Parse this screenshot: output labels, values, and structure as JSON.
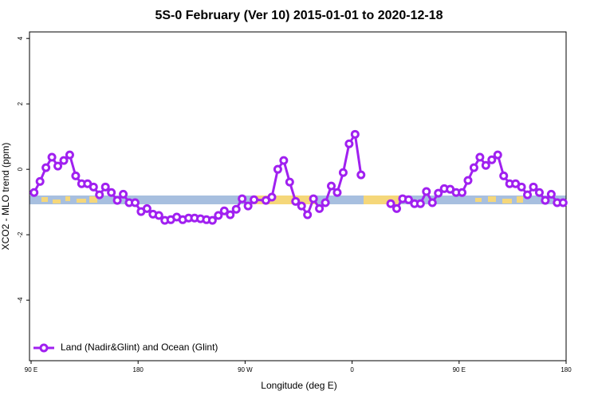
{
  "chart_data": {
    "type": "line",
    "title": "5S-0 February (Ver 10)   2015-01-01 to 2020-12-18",
    "x_label": "Longitude (deg E)",
    "y_label": "XCO2 - MLO trend (ppm)",
    "xlim": [
      90,
      540
    ],
    "ylim": [
      -5.85,
      4.2
    ],
    "xticks": [
      {
        "value": 90,
        "label": "90 E"
      },
      {
        "value": 180,
        "label": "180"
      },
      {
        "value": 270,
        "label": "90 W"
      },
      {
        "value": 360,
        "label": "0"
      },
      {
        "value": 450,
        "label": "90 E"
      },
      {
        "value": 540,
        "label": "180"
      }
    ],
    "yticks": [
      -4,
      -2,
      0,
      2,
      4
    ],
    "legend": "bottom-left",
    "series": [
      {
        "name": "Land (Nadir&Glint) and Ocean (Glint)",
        "color": "#a020f0",
        "x": [
          92.5,
          97.5,
          102.5,
          107.5,
          112.5,
          117.5,
          122.5,
          127.5,
          132.5,
          137.5,
          142.5,
          147.5,
          152.5,
          157.5,
          162.5,
          167.5,
          172.5,
          177.5,
          182.5,
          187.5,
          192.5,
          197.5,
          202.5,
          207.5,
          212.5,
          217.5,
          222.5,
          227.5,
          232.5,
          237.5,
          242.5,
          247.5,
          252.5,
          257.5,
          262.5,
          267.5,
          272.5,
          277.5,
          287.5,
          292.5,
          297.5,
          302.5,
          307.5,
          312.5,
          317.5,
          322.5,
          327.5,
          332.5,
          337.5,
          342.5,
          347.5,
          352.5,
          357.5,
          362.5,
          367.5,
          372.5,
          377.5,
          382.5,
          387.5,
          392.5,
          397.5,
          402.5,
          407.5,
          412.5,
          417.5,
          422.5,
          427.5,
          432.5,
          437.5,
          442.5,
          447.5,
          452.5,
          457.5,
          462.5,
          467.5,
          472.5,
          477.5,
          482.5,
          487.5,
          492.5,
          497.5,
          502.5,
          507.5,
          512.5,
          517.5,
          522.5,
          527.5,
          532.5,
          537.5
        ],
        "values": [
          -0.71,
          -0.37,
          0.05,
          0.37,
          0.1,
          0.27,
          0.44,
          -0.2,
          -0.44,
          -0.44,
          -0.54,
          -0.78,
          -0.54,
          -0.71,
          -0.95,
          -0.76,
          -1.02,
          -1.02,
          -1.29,
          -1.2,
          -1.37,
          -1.41,
          -1.56,
          -1.54,
          -1.46,
          -1.54,
          -1.49,
          -1.49,
          -1.51,
          -1.54,
          -1.56,
          -1.41,
          -1.27,
          -1.39,
          -1.22,
          -0.9,
          -1.12,
          -0.93,
          -0.95,
          -0.85,
          0,
          0.27,
          -0.39,
          -0.98,
          -1.12,
          -1.39,
          -0.9,
          -1.2,
          -1.02,
          -0.51,
          -0.71,
          -0.1,
          0.78,
          1.07,
          -0.17,
          null,
          null,
          null,
          null,
          -1.05,
          -1.2,
          -0.9,
          -0.93,
          -1.05,
          -1.05,
          -0.68,
          -1.02,
          -0.73,
          -0.59,
          -0.61,
          -0.71,
          -0.71,
          -0.34,
          0.05,
          0.37,
          0.12,
          0.29,
          0.44,
          -0.2,
          -0.44,
          -0.44,
          -0.54,
          -0.78,
          -0.54,
          -0.71,
          -0.95,
          -0.76,
          -1.02,
          -1.02
        ]
      }
    ]
  }
}
